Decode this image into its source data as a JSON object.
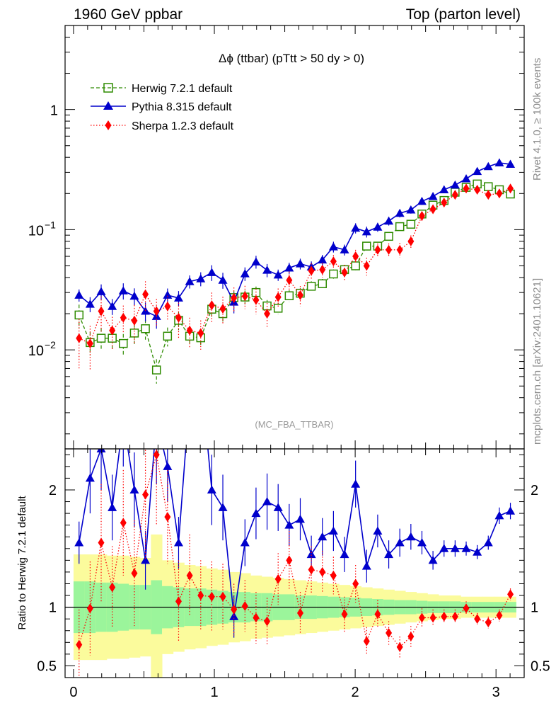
{
  "header": {
    "left": "1960 GeV ppbar",
    "right": "Top (parton level)"
  },
  "side": {
    "rivet": "Rivet 4.1.0, ≥ 100k events",
    "mcplots": "mcplots.cern.ch [arXiv:2401.10621]"
  },
  "chart_data": {
    "type": "line",
    "title": "Δϕ (ttbar) (pTtt > 50 dy > 0)",
    "analysis": "(MC_FBA_TTBAR)",
    "x": [
      0.0393,
      0.1178,
      0.1963,
      0.2749,
      0.3534,
      0.432,
      0.5105,
      0.589,
      0.6676,
      0.7461,
      0.8247,
      0.9032,
      0.9817,
      1.0603,
      1.1388,
      1.2174,
      1.2959,
      1.3744,
      1.453,
      1.5315,
      1.6101,
      1.6886,
      1.7671,
      1.8457,
      1.9242,
      2.0028,
      2.0813,
      2.1598,
      2.2384,
      2.3169,
      2.3955,
      2.474,
      2.5525,
      2.6311,
      2.7096,
      2.7882,
      2.8667,
      2.9452,
      3.0238,
      3.1023
    ],
    "xlim": [
      -0.06,
      3.2
    ],
    "xticks": [
      0,
      1,
      2,
      3
    ],
    "main": {
      "ylim": [
        0.0015,
        5
      ],
      "yscale": "log",
      "ytick_labels": [
        {
          "value": 0.01,
          "label": "10",
          "sup": "−2"
        },
        {
          "value": 0.1,
          "label": "10",
          "sup": "−1"
        },
        {
          "value": 1,
          "label": "1",
          "sup": ""
        }
      ]
    },
    "ratio": {
      "ylabel": "Ratio to Herwig 7.2.1 default",
      "ylim": [
        0.4,
        2.35
      ],
      "yticks": [
        0.5,
        1,
        2
      ]
    },
    "series": [
      {
        "name": "Herwig 7.2.1 default",
        "color": "#2e8b00",
        "style": "dashed",
        "marker": "open-square",
        "values": [
          0.0195,
          0.0115,
          0.0125,
          0.0125,
          0.0113,
          0.0138,
          0.015,
          0.0068,
          0.013,
          0.0176,
          0.013,
          0.0126,
          0.0218,
          0.02,
          0.0272,
          0.0275,
          0.03,
          0.0232,
          0.0222,
          0.0282,
          0.0296,
          0.0338,
          0.0355,
          0.0428,
          0.0465,
          0.05,
          0.073,
          0.073,
          0.088,
          0.106,
          0.111,
          0.135,
          0.16,
          0.175,
          0.205,
          0.225,
          0.24,
          0.228,
          0.215,
          0.198
        ],
        "ratio": [
          1,
          1,
          1,
          1,
          1,
          1,
          1,
          1,
          1,
          1,
          1,
          1,
          1,
          1,
          1,
          1,
          1,
          1,
          1,
          1,
          1,
          1,
          1,
          1,
          1,
          1,
          1,
          1,
          1,
          1,
          1,
          1,
          1,
          1,
          1,
          1,
          1,
          1,
          1,
          1
        ],
        "band_inner": [
          0.22,
          0.22,
          0.21,
          0.21,
          0.2,
          0.19,
          0.19,
          0.23,
          0.18,
          0.17,
          0.16,
          0.16,
          0.15,
          0.14,
          0.13,
          0.13,
          0.12,
          0.12,
          0.11,
          0.11,
          0.1,
          0.1,
          0.095,
          0.09,
          0.085,
          0.08,
          0.075,
          0.07,
          0.065,
          0.06,
          0.06,
          0.055,
          0.05,
          0.05,
          0.05,
          0.045,
          0.045,
          0.045,
          0.045,
          0.045
        ],
        "band_outer": [
          0.45,
          0.45,
          0.45,
          0.44,
          0.44,
          0.43,
          0.42,
          0.62,
          0.4,
          0.38,
          0.36,
          0.35,
          0.33,
          0.32,
          0.3,
          0.29,
          0.27,
          0.26,
          0.25,
          0.24,
          0.23,
          0.22,
          0.21,
          0.2,
          0.19,
          0.18,
          0.17,
          0.16,
          0.15,
          0.14,
          0.13,
          0.12,
          0.11,
          0.1,
          0.1,
          0.09,
          0.09,
          0.09,
          0.09,
          0.09
        ]
      },
      {
        "name": "Pythia 8.315 default",
        "color": "#0000cc",
        "style": "solid",
        "marker": "filled-triangle",
        "values": [
          0.0285,
          0.024,
          0.0305,
          0.023,
          0.031,
          0.028,
          0.021,
          0.019,
          0.0285,
          0.027,
          0.037,
          0.039,
          0.044,
          0.038,
          0.025,
          0.043,
          0.054,
          0.046,
          0.042,
          0.048,
          0.052,
          0.049,
          0.056,
          0.072,
          0.068,
          0.103,
          0.096,
          0.105,
          0.118,
          0.137,
          0.146,
          0.172,
          0.189,
          0.215,
          0.235,
          0.265,
          0.305,
          0.335,
          0.36,
          0.35
        ],
        "ratio": [
          1.55,
          2.1,
          2.35,
          1.85,
          2.6,
          2.0,
          1.4,
          2.6,
          2.2,
          1.55,
          2.8,
          3.0,
          2.0,
          1.85,
          0.92,
          1.55,
          1.8,
          1.9,
          1.85,
          1.7,
          1.75,
          1.45,
          1.6,
          1.65,
          1.45,
          2.05,
          1.35,
          1.65,
          1.45,
          1.55,
          1.6,
          1.55,
          1.4,
          1.5,
          1.5,
          1.5,
          1.47,
          1.55,
          1.78,
          1.82
        ],
        "err": [
          0.18,
          0.3,
          0.35,
          0.28,
          0.4,
          0.32,
          0.25,
          0.55,
          0.3,
          0.22,
          0.35,
          0.4,
          0.3,
          0.28,
          0.18,
          0.2,
          0.22,
          0.24,
          0.2,
          0.18,
          0.18,
          0.16,
          0.16,
          0.17,
          0.15,
          0.2,
          0.14,
          0.14,
          0.12,
          0.12,
          0.11,
          0.1,
          0.08,
          0.07,
          0.07,
          0.06,
          0.06,
          0.06,
          0.07,
          0.07
        ]
      },
      {
        "name": "Sherpa 1.2.3 default",
        "color": "#ff0000",
        "style": "dotted",
        "marker": "filled-diamond",
        "values": [
          0.0125,
          0.0113,
          0.021,
          0.0145,
          0.0185,
          0.0175,
          0.029,
          0.021,
          0.023,
          0.0185,
          0.0145,
          0.0138,
          0.0235,
          0.022,
          0.027,
          0.028,
          0.026,
          0.02,
          0.0275,
          0.038,
          0.0285,
          0.0455,
          0.0465,
          0.0545,
          0.044,
          0.06,
          0.05,
          0.068,
          0.068,
          0.068,
          0.08,
          0.13,
          0.148,
          0.168,
          0.195,
          0.22,
          0.215,
          0.195,
          0.2,
          0.22
        ],
        "ratio": [
          0.68,
          0.99,
          1.55,
          1.17,
          1.72,
          1.29,
          1.96,
          2.3,
          1.77,
          1.05,
          1.27,
          1.1,
          1.09,
          1.09,
          0.98,
          1.01,
          0.91,
          0.88,
          1.24,
          1.4,
          0.95,
          1.32,
          1.3,
          1.27,
          0.94,
          1.2,
          0.71,
          0.94,
          0.78,
          0.66,
          0.75,
          0.91,
          0.91,
          0.92,
          0.92,
          0.99,
          0.9,
          0.87,
          0.93,
          1.11
        ],
        "err": [
          0.3,
          0.4,
          0.5,
          0.35,
          0.45,
          0.45,
          0.55,
          0.6,
          0.4,
          0.35,
          0.35,
          0.3,
          0.3,
          0.28,
          0.22,
          0.22,
          0.22,
          0.2,
          0.22,
          0.25,
          0.18,
          0.2,
          0.18,
          0.16,
          0.15,
          0.16,
          0.12,
          0.12,
          0.1,
          0.09,
          0.09,
          0.08,
          0.07,
          0.06,
          0.06,
          0.06,
          0.05,
          0.05,
          0.05,
          0.05
        ]
      }
    ]
  }
}
